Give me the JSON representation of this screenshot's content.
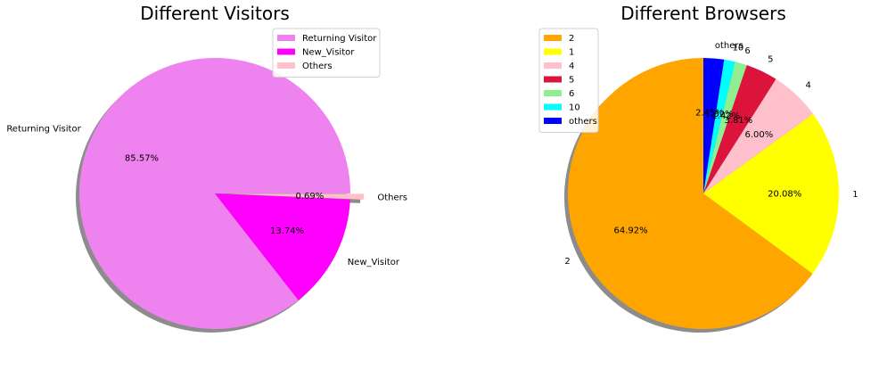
{
  "chart_data": [
    {
      "type": "pie",
      "title": "Different Visitors",
      "labels": [
        "Returning Visitor",
        "New_Visitor",
        "Others"
      ],
      "values": [
        85.57,
        13.74,
        0.69
      ],
      "value_labels": [
        "85.57%",
        "13.74%",
        "0.69%"
      ],
      "colors": [
        "#EE82EE",
        "#FF00FF",
        "#FFC0CB"
      ],
      "explode": [
        0,
        0,
        0.1
      ],
      "shadow": true,
      "legend": {
        "entries": [
          "Returning Visitor",
          "New_Visitor",
          "Others"
        ],
        "placement": "upper-right"
      }
    },
    {
      "type": "pie",
      "title": "Different Browsers",
      "labels": [
        "2",
        "1",
        "4",
        "5",
        "6",
        "10",
        "others"
      ],
      "values": [
        64.92,
        20.08,
        6.0,
        3.81,
        1.42,
        1.32,
        2.45
      ],
      "value_labels": [
        "64.92%",
        "20.08%",
        "6.00%",
        "3.81%",
        "1.42%",
        "1.32%",
        "2.45%"
      ],
      "colors": [
        "#FFA500",
        "#FFFF00",
        "#FFC0CB",
        "#DC143C",
        "#90EE90",
        "#00FFFF",
        "#0000FF"
      ],
      "shadow": true,
      "legend": {
        "entries": [
          "2",
          "1",
          "4",
          "5",
          "6",
          "10",
          "others"
        ],
        "placement": "upper-left"
      }
    }
  ]
}
